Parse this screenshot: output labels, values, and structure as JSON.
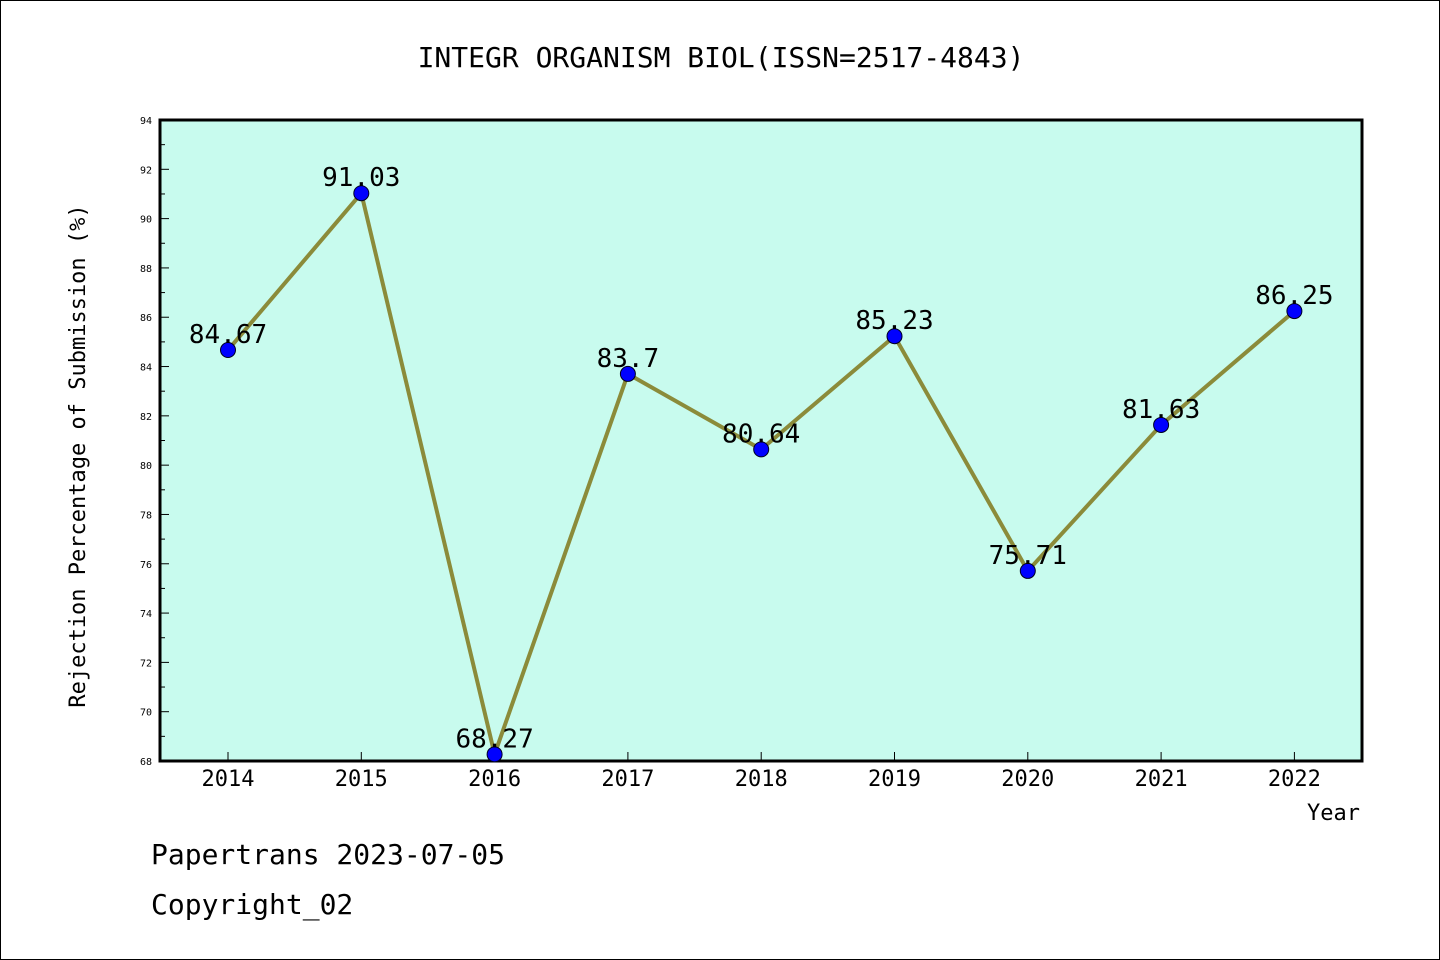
{
  "chart_data": {
    "type": "line",
    "title": "INTEGR ORGANISM BIOL(ISSN=2517-4843)",
    "xlabel": "Year",
    "ylabel": "Rejection Percentage of Submission (%)",
    "ylim": [
      68,
      94
    ],
    "yticks": [
      68,
      70,
      72,
      74,
      76,
      78,
      80,
      82,
      84,
      86,
      88,
      90,
      92,
      94
    ],
    "categories": [
      "2014",
      "2015",
      "2016",
      "2017",
      "2018",
      "2019",
      "2020",
      "2021",
      "2022"
    ],
    "series": [
      {
        "values": [
          84.67,
          91.03,
          68.27,
          83.7,
          80.64,
          85.23,
          75.71,
          81.63,
          86.25
        ],
        "labels": [
          "84.67",
          "91.03",
          "68.27",
          "83.7",
          "80.64",
          "85.23",
          "75.71",
          "81.63",
          "86.25"
        ]
      }
    ],
    "grid": false,
    "colors": {
      "plot_background": "#c8fbee",
      "line": "#8b8b3a",
      "marker": "#0000ff"
    }
  },
  "footer": {
    "line1": "Papertrans 2023-07-05",
    "line2": "Copyright_02"
  }
}
